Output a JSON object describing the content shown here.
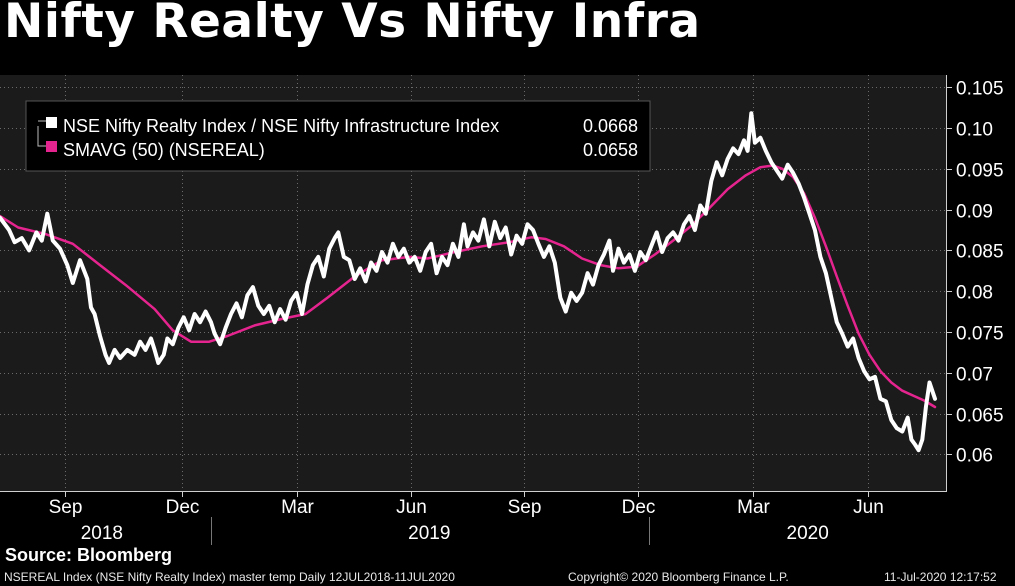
{
  "title": "Nifty Realty Vs Nifty Infra",
  "source": "Source: Bloomberg",
  "footer": {
    "left": "NSEREAL Index (NSE Nifty Realty Index) master temp  Daily 12JUL2018-11JUL2020",
    "center": "Copyright© 2020 Bloomberg Finance L.P.",
    "right": "11-Jul-2020 12:17:52"
  },
  "colors": {
    "background": "#000000",
    "plot": "#1b1b1b",
    "ratio": "#ffffff",
    "sma": "#e6248f"
  },
  "chart_data": {
    "type": "line",
    "ylim": [
      0.0555,
      0.1065
    ],
    "xlim": [
      0,
      514
    ],
    "yticks": [
      "0.105",
      "0.10",
      "0.095",
      "0.09",
      "0.085",
      "0.08",
      "0.075",
      "0.07",
      "0.065",
      "0.06"
    ],
    "ytick_values": [
      0.105,
      0.1,
      0.095,
      0.09,
      0.085,
      0.08,
      0.075,
      0.07,
      0.065,
      0.06
    ],
    "xticks": [
      {
        "label": "Sep",
        "day": 36
      },
      {
        "label": "Dec",
        "day": 100
      },
      {
        "label": "Mar",
        "day": 163
      },
      {
        "label": "Jun",
        "day": 226
      },
      {
        "label": "Sep",
        "day": 288
      },
      {
        "label": "Dec",
        "day": 351
      },
      {
        "label": "Mar",
        "day": 414
      },
      {
        "label": "Jun",
        "day": 477
      }
    ],
    "years": [
      {
        "label": "2018",
        "day": 56
      },
      {
        "label": "2019",
        "day": 236
      },
      {
        "label": "2020",
        "day": 444
      }
    ],
    "year_dividers": [
      116,
      357
    ],
    "legend_position": "top-left",
    "series": [
      {
        "name": "NSE Nifty Realty Index / NSE Nifty Infrastructure Index",
        "last_value": "0.0668",
        "color": "#ffffff",
        "points": [
          [
            0,
            0.089
          ],
          [
            5,
            0.0875
          ],
          [
            8,
            0.086
          ],
          [
            12,
            0.0865
          ],
          [
            16,
            0.085
          ],
          [
            20,
            0.0872
          ],
          [
            23,
            0.0862
          ],
          [
            26,
            0.0895
          ],
          [
            29,
            0.0862
          ],
          [
            33,
            0.0852
          ],
          [
            37,
            0.0832
          ],
          [
            40,
            0.081
          ],
          [
            44,
            0.0838
          ],
          [
            48,
            0.0815
          ],
          [
            50,
            0.078
          ],
          [
            52,
            0.0772
          ],
          [
            55,
            0.0745
          ],
          [
            58,
            0.0722
          ],
          [
            60,
            0.0712
          ],
          [
            63,
            0.0728
          ],
          [
            66,
            0.0718
          ],
          [
            70,
            0.0728
          ],
          [
            74,
            0.0722
          ],
          [
            77,
            0.0738
          ],
          [
            80,
            0.0728
          ],
          [
            83,
            0.0742
          ],
          [
            85,
            0.0728
          ],
          [
            87,
            0.0712
          ],
          [
            90,
            0.0722
          ],
          [
            92,
            0.0742
          ],
          [
            95,
            0.0735
          ],
          [
            98,
            0.0755
          ],
          [
            101,
            0.0768
          ],
          [
            104,
            0.0752
          ],
          [
            107,
            0.0772
          ],
          [
            110,
            0.0762
          ],
          [
            113,
            0.0775
          ],
          [
            116,
            0.0762
          ],
          [
            118,
            0.0748
          ],
          [
            121,
            0.0735
          ],
          [
            124,
            0.0755
          ],
          [
            127,
            0.0772
          ],
          [
            130,
            0.0785
          ],
          [
            133,
            0.0768
          ],
          [
            136,
            0.0795
          ],
          [
            139,
            0.0805
          ],
          [
            142,
            0.0782
          ],
          [
            145,
            0.0772
          ],
          [
            148,
            0.0782
          ],
          [
            151,
            0.0762
          ],
          [
            154,
            0.0778
          ],
          [
            157,
            0.0765
          ],
          [
            160,
            0.0788
          ],
          [
            163,
            0.0798
          ],
          [
            166,
            0.0772
          ],
          [
            169,
            0.0808
          ],
          [
            172,
            0.0832
          ],
          [
            175,
            0.0842
          ],
          [
            178,
            0.0818
          ],
          [
            181,
            0.0852
          ],
          [
            184,
            0.0865
          ],
          [
            186,
            0.0872
          ],
          [
            189,
            0.0842
          ],
          [
            192,
            0.0838
          ],
          [
            195,
            0.0815
          ],
          [
            198,
            0.0828
          ],
          [
            201,
            0.0812
          ],
          [
            204,
            0.0835
          ],
          [
            207,
            0.0825
          ],
          [
            210,
            0.0848
          ],
          [
            213,
            0.0835
          ],
          [
            216,
            0.0858
          ],
          [
            219,
            0.0842
          ],
          [
            222,
            0.0852
          ],
          [
            225,
            0.0835
          ],
          [
            228,
            0.0842
          ],
          [
            231,
            0.0825
          ],
          [
            234,
            0.0848
          ],
          [
            237,
            0.0858
          ],
          [
            240,
            0.0822
          ],
          [
            243,
            0.0842
          ],
          [
            246,
            0.0832
          ],
          [
            249,
            0.0858
          ],
          [
            252,
            0.0842
          ],
          [
            255,
            0.0882
          ],
          [
            257,
            0.0855
          ],
          [
            260,
            0.0872
          ],
          [
            263,
            0.0862
          ],
          [
            266,
            0.0888
          ],
          [
            269,
            0.0855
          ],
          [
            272,
            0.0885
          ],
          [
            275,
            0.0865
          ],
          [
            278,
            0.0878
          ],
          [
            281,
            0.0845
          ],
          [
            284,
            0.0868
          ],
          [
            287,
            0.0858
          ],
          [
            290,
            0.0882
          ],
          [
            293,
            0.0875
          ],
          [
            296,
            0.0858
          ],
          [
            299,
            0.0842
          ],
          [
            302,
            0.0855
          ],
          [
            305,
            0.0835
          ],
          [
            308,
            0.0792
          ],
          [
            311,
            0.0775
          ],
          [
            314,
            0.0798
          ],
          [
            317,
            0.0788
          ],
          [
            320,
            0.0798
          ],
          [
            323,
            0.0822
          ],
          [
            326,
            0.0808
          ],
          [
            329,
            0.0832
          ],
          [
            332,
            0.0845
          ],
          [
            335,
            0.0862
          ],
          [
            337,
            0.0825
          ],
          [
            340,
            0.0852
          ],
          [
            343,
            0.0835
          ],
          [
            346,
            0.0845
          ],
          [
            349,
            0.0825
          ],
          [
            352,
            0.0848
          ],
          [
            355,
            0.0838
          ],
          [
            358,
            0.0855
          ],
          [
            361,
            0.0872
          ],
          [
            364,
            0.0848
          ],
          [
            367,
            0.0865
          ],
          [
            370,
            0.0872
          ],
          [
            373,
            0.0862
          ],
          [
            376,
            0.0882
          ],
          [
            379,
            0.0892
          ],
          [
            382,
            0.0875
          ],
          [
            385,
            0.0905
          ],
          [
            388,
            0.0895
          ],
          [
            391,
            0.0935
          ],
          [
            394,
            0.0958
          ],
          [
            397,
            0.0942
          ],
          [
            400,
            0.0962
          ],
          [
            403,
            0.0975
          ],
          [
            406,
            0.0968
          ],
          [
            409,
            0.0985
          ],
          [
            411,
            0.0972
          ],
          [
            413,
            0.1018
          ],
          [
            415,
            0.0982
          ],
          [
            418,
            0.0988
          ],
          [
            421,
            0.0972
          ],
          [
            424,
            0.0958
          ],
          [
            427,
            0.0948
          ],
          [
            430,
            0.0938
          ],
          [
            433,
            0.0955
          ],
          [
            436,
            0.0945
          ],
          [
            439,
            0.0932
          ],
          [
            442,
            0.0915
          ],
          [
            445,
            0.0895
          ],
          [
            448,
            0.0875
          ],
          [
            451,
            0.0842
          ],
          [
            454,
            0.0822
          ],
          [
            457,
            0.0792
          ],
          [
            460,
            0.0762
          ],
          [
            463,
            0.0748
          ],
          [
            466,
            0.0732
          ],
          [
            469,
            0.0742
          ],
          [
            472,
            0.0718
          ],
          [
            475,
            0.0702
          ],
          [
            478,
            0.0692
          ],
          [
            481,
            0.0695
          ],
          [
            484,
            0.0668
          ],
          [
            487,
            0.0665
          ],
          [
            490,
            0.0642
          ],
          [
            493,
            0.0632
          ],
          [
            496,
            0.0628
          ],
          [
            499,
            0.0645
          ],
          [
            501,
            0.0618
          ],
          [
            503,
            0.0612
          ],
          [
            505,
            0.0605
          ],
          [
            507,
            0.0618
          ],
          [
            509,
            0.0658
          ],
          [
            511,
            0.0688
          ],
          [
            514,
            0.0668
          ]
        ]
      },
      {
        "name": "SMAVG (50) (NSEREAL)",
        "last_value": "0.0658",
        "color": "#e6248f",
        "points": [
          [
            0,
            0.0892
          ],
          [
            10,
            0.0878
          ],
          [
            25,
            0.087
          ],
          [
            40,
            0.0858
          ],
          [
            55,
            0.0832
          ],
          [
            70,
            0.0806
          ],
          [
            85,
            0.0778
          ],
          [
            95,
            0.0752
          ],
          [
            105,
            0.0738
          ],
          [
            115,
            0.0738
          ],
          [
            125,
            0.0745
          ],
          [
            140,
            0.0758
          ],
          [
            155,
            0.0766
          ],
          [
            168,
            0.0772
          ],
          [
            180,
            0.0792
          ],
          [
            195,
            0.0818
          ],
          [
            210,
            0.0838
          ],
          [
            225,
            0.0842
          ],
          [
            235,
            0.084
          ],
          [
            250,
            0.0848
          ],
          [
            265,
            0.0855
          ],
          [
            280,
            0.086
          ],
          [
            292,
            0.0866
          ],
          [
            300,
            0.0864
          ],
          [
            310,
            0.0855
          ],
          [
            320,
            0.084
          ],
          [
            330,
            0.0832
          ],
          [
            340,
            0.0828
          ],
          [
            350,
            0.083
          ],
          [
            360,
            0.0845
          ],
          [
            370,
            0.0862
          ],
          [
            380,
            0.088
          ],
          [
            390,
            0.0902
          ],
          [
            400,
            0.0925
          ],
          [
            410,
            0.0942
          ],
          [
            418,
            0.0952
          ],
          [
            425,
            0.0954
          ],
          [
            430,
            0.095
          ],
          [
            436,
            0.094
          ],
          [
            442,
            0.092
          ],
          [
            448,
            0.089
          ],
          [
            454,
            0.0855
          ],
          [
            460,
            0.0818
          ],
          [
            466,
            0.0782
          ],
          [
            472,
            0.0748
          ],
          [
            478,
            0.0722
          ],
          [
            484,
            0.0702
          ],
          [
            490,
            0.0688
          ],
          [
            496,
            0.0678
          ],
          [
            502,
            0.0672
          ],
          [
            508,
            0.0666
          ],
          [
            514,
            0.0658
          ]
        ]
      }
    ]
  }
}
